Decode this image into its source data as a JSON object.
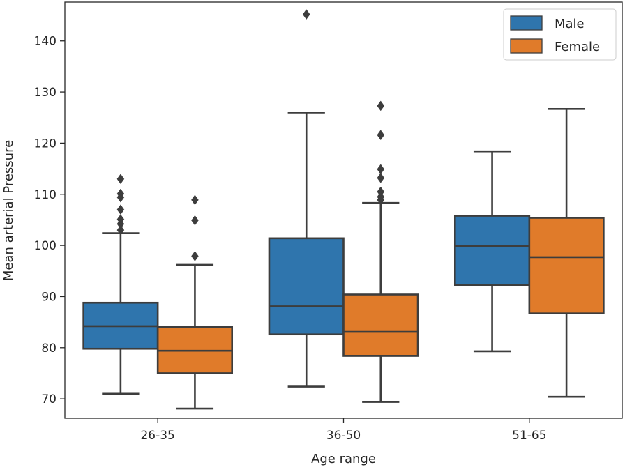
{
  "chart_data": {
    "type": "boxplot",
    "xlabel": "Age range",
    "ylabel": "Mean arterial Pressure",
    "ylim": [
      66.2,
      147.6
    ],
    "yticks": [
      70,
      80,
      90,
      100,
      110,
      120,
      130,
      140
    ],
    "categories": [
      "26-35",
      "36-50",
      "51-65"
    ],
    "legend": {
      "position": "top-right"
    },
    "series": [
      {
        "name": "Male",
        "color": "#2f75ad",
        "boxes": [
          {
            "category": "26-35",
            "whisker_low": 71.0,
            "q1": 79.8,
            "median": 84.2,
            "q3": 88.8,
            "whisker_high": 102.4,
            "outliers": [
              103.0,
              104.2,
              105.1,
              107.0,
              109.4,
              110.1,
              113.0
            ]
          },
          {
            "category": "36-50",
            "whisker_low": 72.4,
            "q1": 82.6,
            "median": 88.1,
            "q3": 101.4,
            "whisker_high": 126.0,
            "outliers": [
              145.2
            ]
          },
          {
            "category": "51-65",
            "whisker_low": 79.3,
            "q1": 92.2,
            "median": 99.9,
            "q3": 105.8,
            "whisker_high": 118.4,
            "outliers": []
          }
        ]
      },
      {
        "name": "Female",
        "color": "#e07b2a",
        "boxes": [
          {
            "category": "26-35",
            "whisker_low": 68.1,
            "q1": 75.0,
            "median": 79.4,
            "q3": 84.1,
            "whisker_high": 96.2,
            "outliers": [
              97.9,
              104.9,
              108.9
            ]
          },
          {
            "category": "36-50",
            "whisker_low": 69.4,
            "q1": 78.4,
            "median": 83.1,
            "q3": 90.4,
            "whisker_high": 108.3,
            "outliers": [
              108.9,
              109.5,
              110.5,
              113.2,
              114.9,
              121.6,
              127.3
            ]
          },
          {
            "category": "51-65",
            "whisker_low": 70.4,
            "q1": 86.7,
            "median": 97.7,
            "q3": 105.4,
            "whisker_high": 126.7,
            "outliers": []
          }
        ]
      }
    ]
  }
}
